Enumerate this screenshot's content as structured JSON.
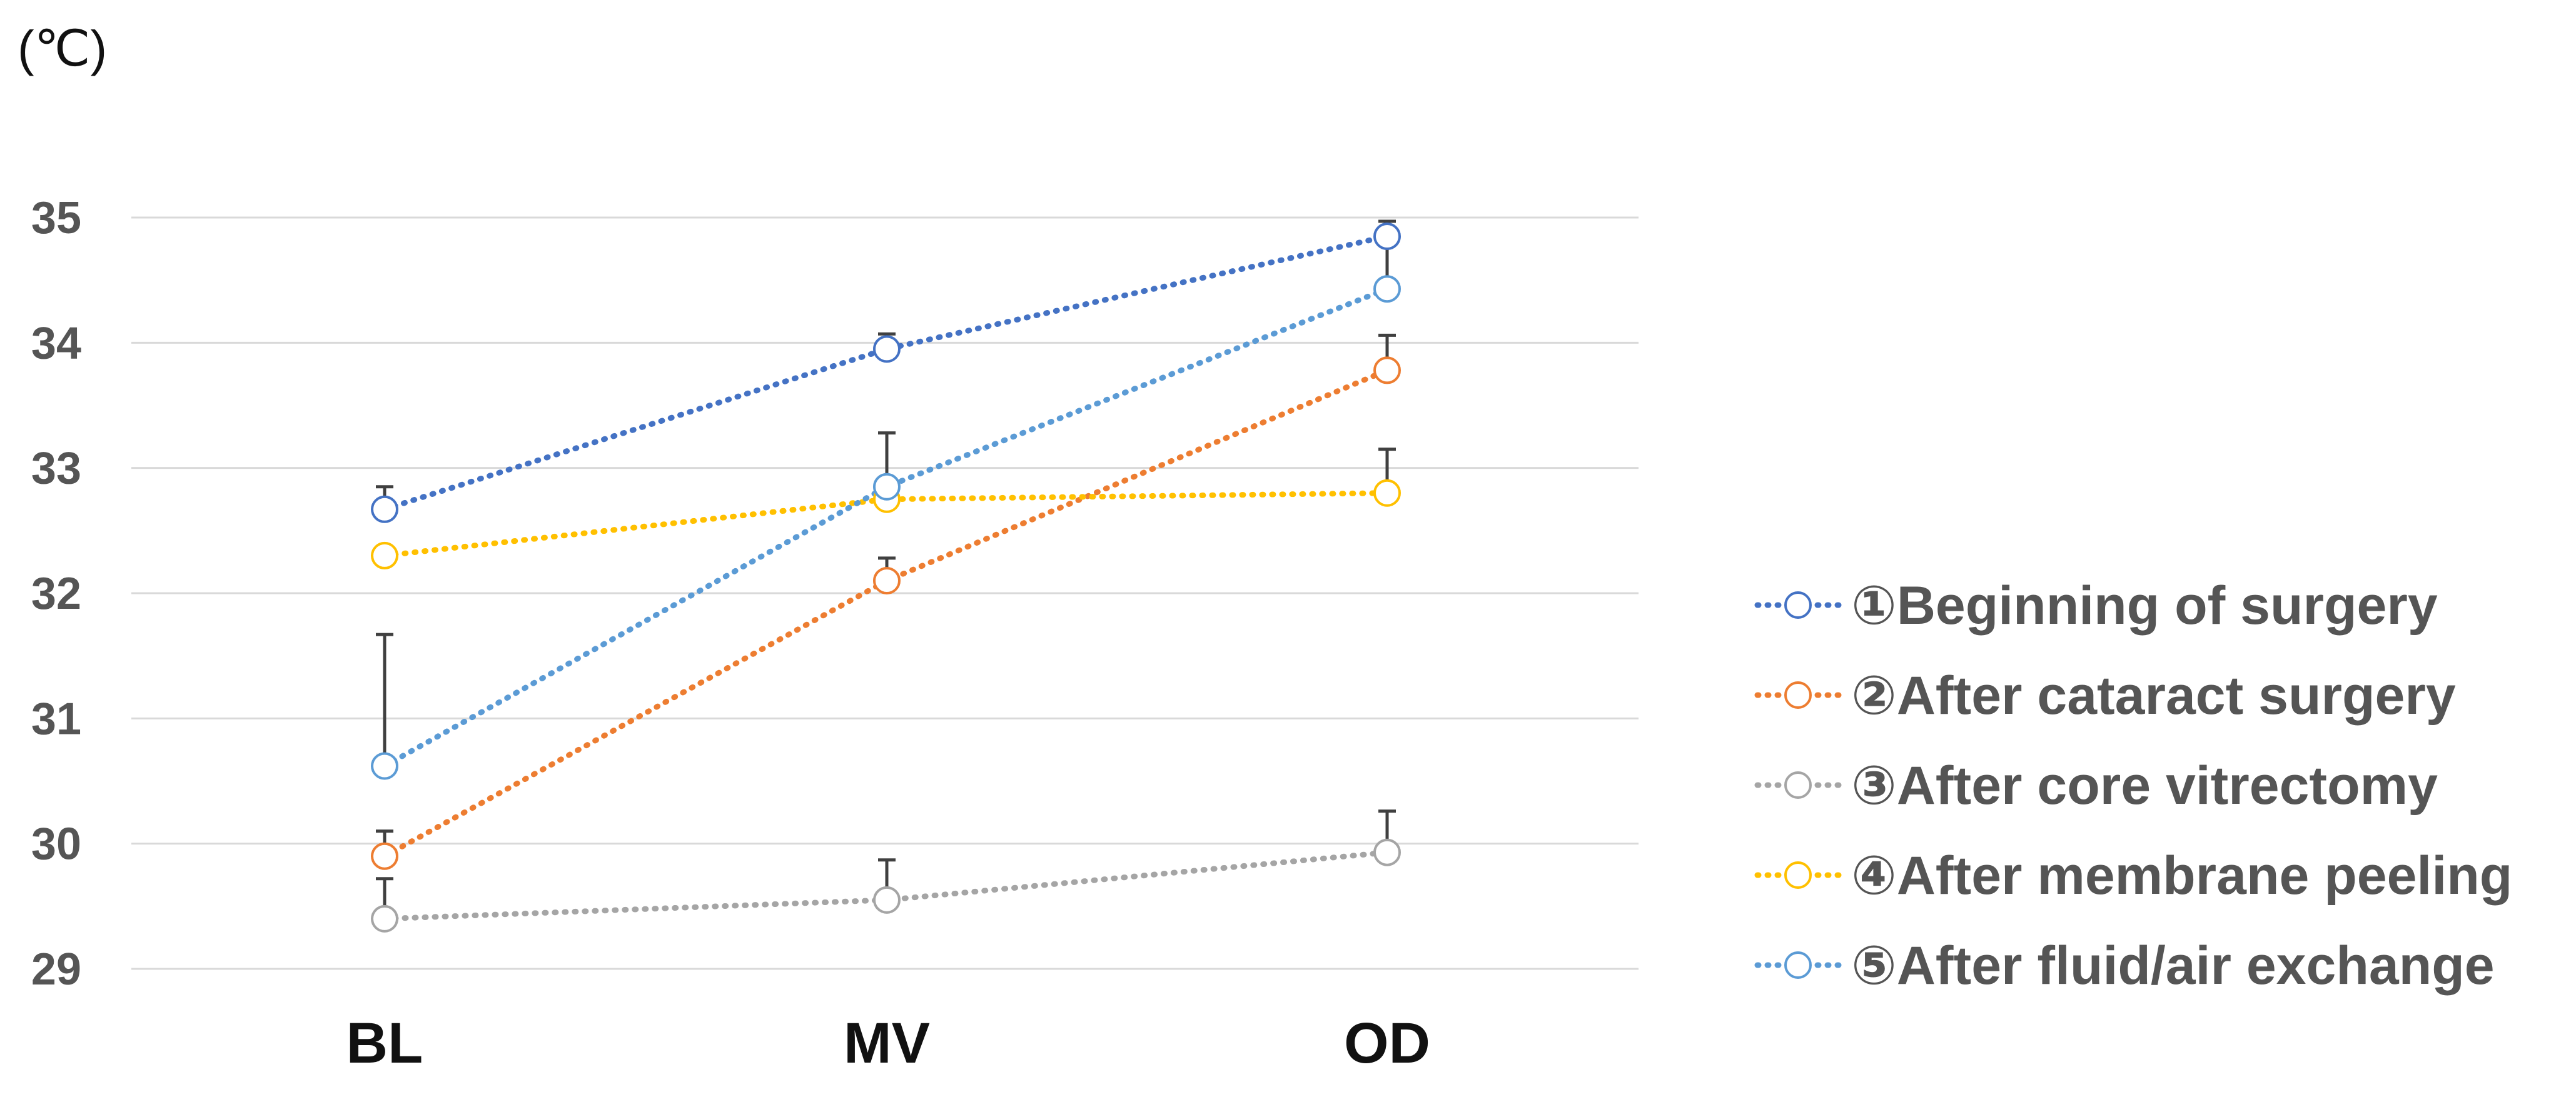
{
  "chart_data": {
    "type": "line",
    "unit_label": "(℃)",
    "categories": [
      "BL",
      "MV",
      "OD"
    ],
    "ylim": [
      29,
      35
    ],
    "yticks": [
      29,
      30,
      31,
      32,
      33,
      34,
      35
    ],
    "grid": true,
    "legend_position": "right",
    "series": [
      {
        "name": "①Beginning of surgery",
        "color": "#4472C4",
        "values": [
          32.67,
          33.95,
          34.85
        ],
        "errors_upper": [
          0.18,
          0.12,
          0.12
        ]
      },
      {
        "name": "②After cataract surgery",
        "color": "#ED7D31",
        "values": [
          29.9,
          32.1,
          33.78
        ],
        "errors_upper": [
          0.2,
          0.18,
          0.28
        ]
      },
      {
        "name": "③After core vitrectomy",
        "color": "#A5A5A5",
        "values": [
          29.4,
          29.55,
          29.93
        ],
        "errors_upper": [
          0.32,
          0.32,
          0.33
        ]
      },
      {
        "name": "④After membrane peeling",
        "color": "#FFC000",
        "values": [
          32.3,
          32.75,
          32.8
        ],
        "errors_upper": [
          0.0,
          0.0,
          0.35
        ]
      },
      {
        "name": "⑤After fluid/air exchange",
        "color": "#5B9BD5",
        "values": [
          30.62,
          32.85,
          34.43
        ],
        "errors_upper": [
          1.05,
          0.43,
          0.45
        ]
      }
    ]
  }
}
